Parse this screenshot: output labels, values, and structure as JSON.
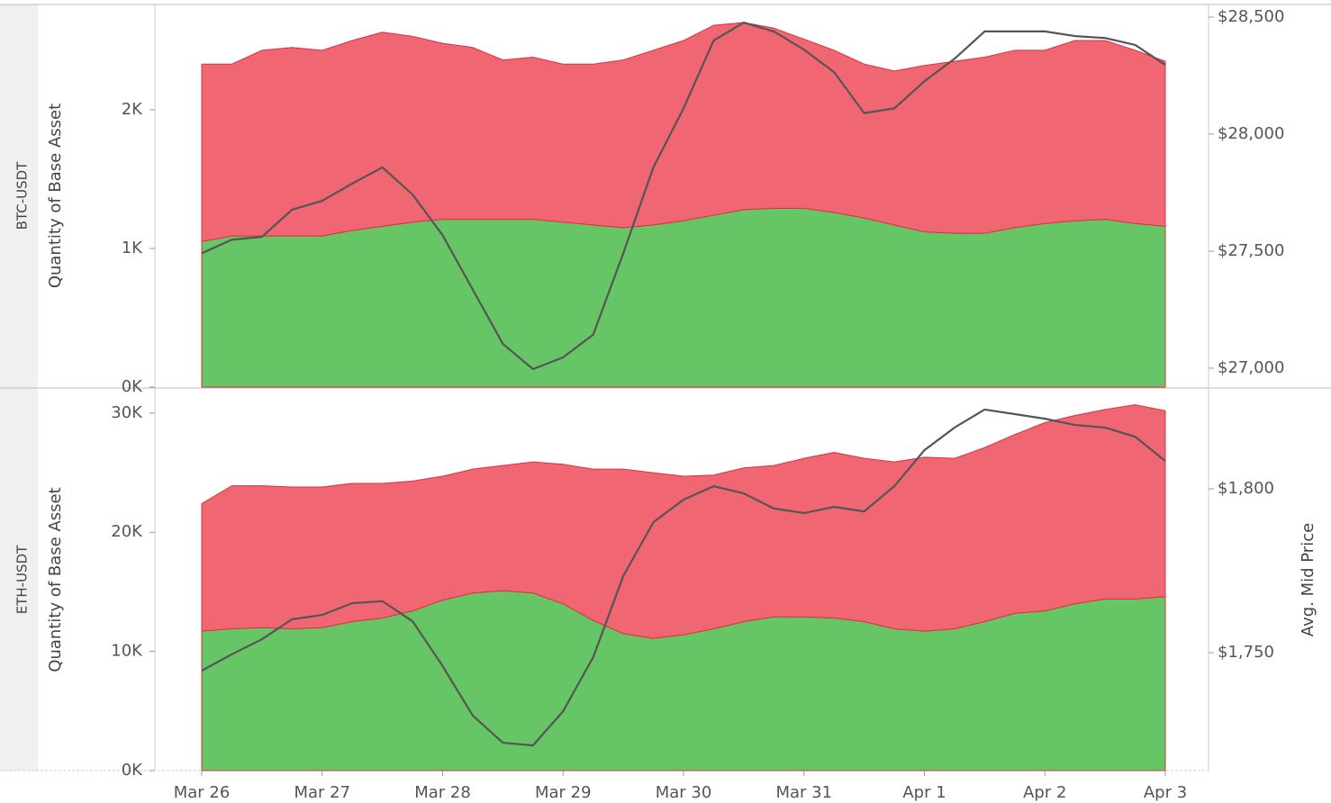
{
  "chart_data": [
    {
      "type": "area",
      "stacked": true,
      "title": "BTC-USDT",
      "y_label": "Quantity of Base Asset",
      "ylim": [
        0,
        2760
      ],
      "yticks": [
        {
          "value": 0,
          "label": "0K"
        },
        {
          "value": 1000,
          "label": "1K"
        },
        {
          "value": 2000,
          "label": "2K"
        }
      ],
      "y2lim": [
        26919,
        28554
      ],
      "y2ticks": [
        {
          "value": 27000,
          "label": "$27,000"
        },
        {
          "value": 27500,
          "label": "$27,500"
        },
        {
          "value": 28000,
          "label": "$28,000"
        },
        {
          "value": 28500,
          "label": "$28,500"
        }
      ],
      "series": [
        {
          "type": "area",
          "color": "#66c666",
          "values": [
            1050,
            1090,
            1090,
            1090,
            1090,
            1130,
            1160,
            1190,
            1210,
            1210,
            1210,
            1210,
            1190,
            1170,
            1150,
            1170,
            1200,
            1240,
            1280,
            1290,
            1290,
            1260,
            1220,
            1170,
            1120,
            1110,
            1110,
            1150,
            1180,
            1200,
            1210,
            1180,
            1160
          ]
        },
        {
          "type": "area",
          "color": "#f06672",
          "values": [
            1280,
            1240,
            1340,
            1360,
            1340,
            1370,
            1400,
            1340,
            1270,
            1240,
            1150,
            1170,
            1140,
            1160,
            1210,
            1260,
            1300,
            1370,
            1350,
            1300,
            1220,
            1170,
            1110,
            1110,
            1200,
            1240,
            1270,
            1280,
            1250,
            1300,
            1290,
            1250,
            1190
          ]
        },
        {
          "type": "line",
          "axis": "y2",
          "color": "#555555",
          "values": [
            27491,
            27549,
            27561,
            27677,
            27715,
            27789,
            27858,
            27742,
            27568,
            27336,
            27104,
            26996,
            27046,
            27143,
            27491,
            27858,
            28110,
            28400,
            28477,
            28439,
            28361,
            28265,
            28090,
            28110,
            28226,
            28322,
            28439,
            28439,
            28439,
            28419,
            28411,
            28381,
            28296
          ]
        }
      ]
    },
    {
      "type": "area",
      "stacked": true,
      "title": "ETH-USDT",
      "y_label": "Quantity of Base Asset",
      "y2_label": "Avg. Mid Price",
      "categories": [
        "Mar 26",
        null,
        null,
        null,
        "Mar 27",
        null,
        null,
        null,
        "Mar 28",
        null,
        null,
        null,
        "Mar 29",
        null,
        null,
        null,
        "Mar 30",
        null,
        null,
        null,
        "Mar 31",
        null,
        null,
        null,
        "Apr 1",
        null,
        null,
        null,
        "Apr 2",
        null,
        null,
        null,
        "Apr 3"
      ],
      "ylim": [
        0,
        32030
      ],
      "yticks": [
        {
          "value": 0,
          "label": "0K"
        },
        {
          "value": 10000,
          "label": "10K"
        },
        {
          "value": 20000,
          "label": "20K"
        },
        {
          "value": 30000,
          "label": "30K"
        }
      ],
      "y2lim": [
        1714,
        1830.5
      ],
      "y2ticks": [
        {
          "value": 1750,
          "label": "$1,750"
        },
        {
          "value": 1800,
          "label": "$1,800"
        }
      ],
      "series": [
        {
          "type": "area",
          "color": "#66c666",
          "values": [
            11700,
            11900,
            12000,
            11900,
            12000,
            12500,
            12800,
            13400,
            14300,
            14900,
            15100,
            14900,
            14000,
            12600,
            11500,
            11100,
            11400,
            11900,
            12500,
            12900,
            12900,
            12800,
            12500,
            11900,
            11700,
            11900,
            12500,
            13200,
            13400,
            14000,
            14400,
            14400,
            14600
          ]
        },
        {
          "type": "area",
          "color": "#f06672",
          "values": [
            10700,
            12000,
            11900,
            11900,
            11800,
            11600,
            11300,
            10900,
            10400,
            10400,
            10500,
            11000,
            11700,
            12700,
            13800,
            13900,
            13300,
            12900,
            12900,
            12700,
            13300,
            13900,
            13700,
            14000,
            14600,
            14300,
            14600,
            15000,
            15800,
            15800,
            15900,
            16300,
            15600
          ]
        },
        {
          "type": "line",
          "axis": "y2",
          "color": "#555555",
          "values": [
            1744.5,
            1749.5,
            1754.1,
            1760.2,
            1761.5,
            1765.1,
            1765.7,
            1759.6,
            1745.9,
            1730.8,
            1722.5,
            1721.7,
            1732.1,
            1748.6,
            1773.4,
            1789.8,
            1796.7,
            1800.8,
            1798.6,
            1794.0,
            1792.6,
            1794.5,
            1793.1,
            1800.8,
            1811.8,
            1818.7,
            1824.2,
            1822.8,
            1821.4,
            1819.5,
            1818.7,
            1815.9,
            1808.5
          ]
        }
      ]
    }
  ]
}
